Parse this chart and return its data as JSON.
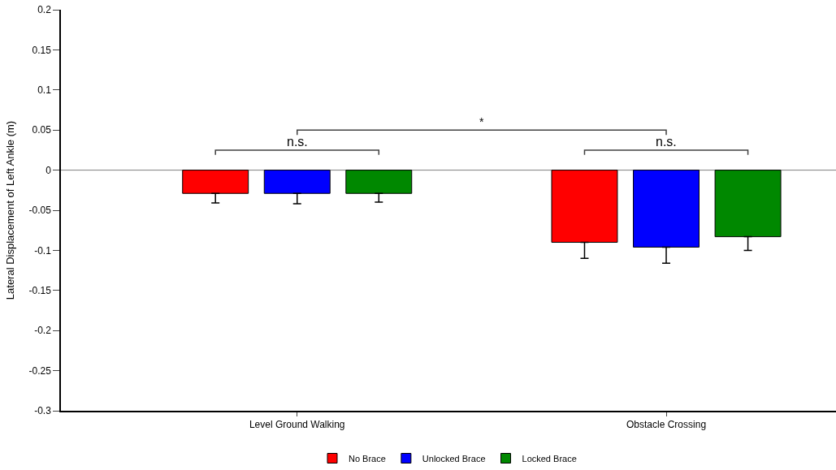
{
  "chart_data": {
    "type": "bar",
    "ylabel": "Lateral Displacement of Left Ankle (m)",
    "categories": [
      "Level Ground Walking",
      "Obstacle Crossing"
    ],
    "series": [
      {
        "name": "No Brace",
        "color": "#ff0000",
        "values": [
          -0.029,
          -0.09
        ],
        "errors": [
          [
            -0.041,
            -0.029
          ],
          [
            -0.11,
            -0.09
          ]
        ]
      },
      {
        "name": "Unlocked Brace",
        "color": "#0000ff",
        "values": [
          -0.029,
          -0.096
        ],
        "errors": [
          [
            -0.042,
            -0.029
          ],
          [
            -0.116,
            -0.096
          ]
        ]
      },
      {
        "name": "Locked Brace",
        "color": "#008800",
        "values": [
          -0.029,
          -0.083
        ],
        "errors": [
          [
            -0.04,
            -0.029
          ],
          [
            -0.1,
            -0.083
          ]
        ]
      }
    ],
    "ylim": [
      -0.3,
      0.2
    ],
    "yticks": [
      -0.3,
      -0.25,
      -0.2,
      -0.15,
      -0.1,
      -0.05,
      0,
      0.05,
      0.1,
      0.15,
      0.2
    ],
    "annotations": [
      "n.s.",
      "n.s.",
      "*"
    ],
    "ref_lines": [
      {
        "axis": "y",
        "value": 0,
        "color": "#808080"
      }
    ],
    "legend": "bottom",
    "grid": false
  }
}
